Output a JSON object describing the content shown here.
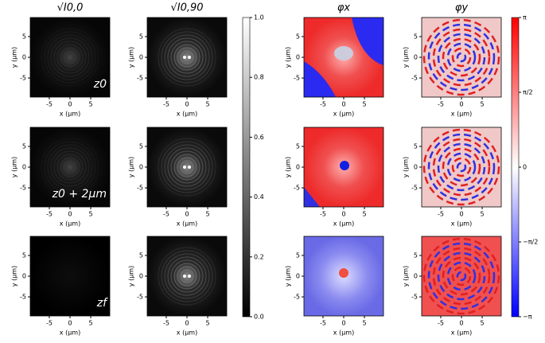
{
  "chart_data": {
    "type": "image-grid",
    "columns": [
      "√I0,0",
      "√I0,90",
      "φx",
      "φy"
    ],
    "rows": [
      "z0",
      "z0 + 2μm",
      "zf"
    ],
    "xlabel": "x (μm)",
    "ylabel": "y (μm)",
    "xlim": [
      -9.6,
      9.6
    ],
    "ylim": [
      -9.6,
      9.6
    ],
    "xticks": [
      -5,
      0,
      5
    ],
    "yticks": [
      -5,
      0,
      5
    ],
    "colorbars": [
      {
        "colors": [
          "#000000",
          "#ffffff"
        ],
        "ylim": [
          0,
          1
        ],
        "yticks": [
          {
            "value": 0,
            "label": "0.0"
          },
          {
            "value": 0.2,
            "label": "0.2"
          },
          {
            "value": 0.4,
            "label": "0.4"
          },
          {
            "value": 0.6,
            "label": "0.6"
          },
          {
            "value": 0.8,
            "label": "0.8"
          },
          {
            "value": 1,
            "label": "1.0"
          }
        ]
      },
      {
        "colors": [
          "#0000ff",
          "#ffffff",
          "#ff0000"
        ],
        "ylim": [
          -3.14159,
          3.14159
        ],
        "yticks": [
          {
            "value": -3.14159,
            "label": "−π"
          },
          {
            "value": -1.5708,
            "label": "−π/2"
          },
          0,
          {
            "value": 1.5708,
            "label": "π/2"
          },
          {
            "value": 3.14159,
            "label": "π"
          }
        ]
      }
    ]
  }
}
